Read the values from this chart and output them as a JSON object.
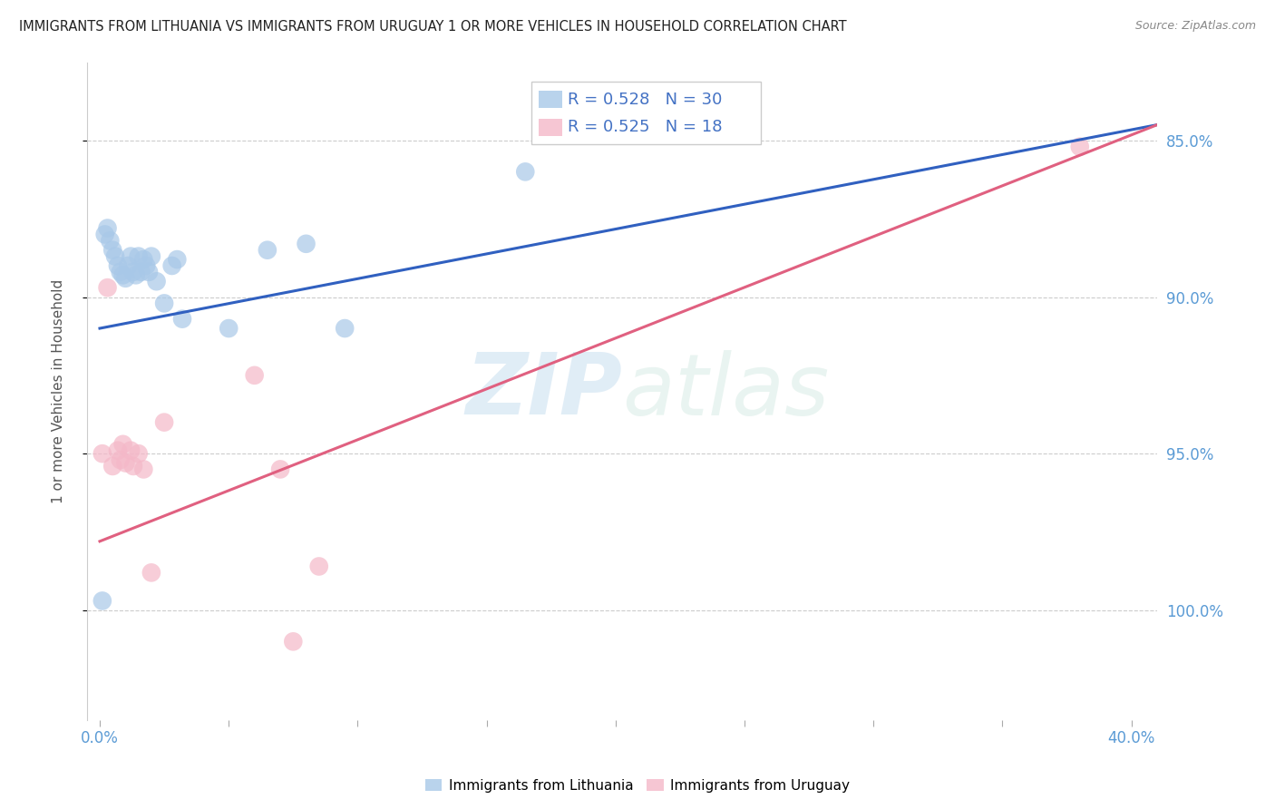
{
  "title": "IMMIGRANTS FROM LITHUANIA VS IMMIGRANTS FROM URUGUAY 1 OR MORE VEHICLES IN HOUSEHOLD CORRELATION CHART",
  "source": "Source: ZipAtlas.com",
  "ylabel": "1 or more Vehicles in Household",
  "legend_blue_r": "R = 0.528",
  "legend_blue_n": "N = 30",
  "legend_pink_r": "R = 0.525",
  "legend_pink_n": "N = 18",
  "legend_label_blue": "Immigrants from Lithuania",
  "legend_label_pink": "Immigrants from Uruguay",
  "watermark_zip": "ZIP",
  "watermark_atlas": "atlas",
  "blue_color": "#a8c8e8",
  "pink_color": "#f4b8c8",
  "trend_blue": "#3060c0",
  "trend_pink": "#e06080",
  "blue_scatter_x": [
    0.001,
    0.002,
    0.003,
    0.004,
    0.005,
    0.006,
    0.007,
    0.008,
    0.009,
    0.01,
    0.011,
    0.012,
    0.013,
    0.014,
    0.015,
    0.016,
    0.017,
    0.018,
    0.019,
    0.02,
    0.022,
    0.025,
    0.028,
    0.03,
    0.032,
    0.05,
    0.065,
    0.08,
    0.095,
    0.165
  ],
  "blue_scatter_y": [
    0.853,
    0.97,
    0.972,
    0.968,
    0.965,
    0.963,
    0.96,
    0.958,
    0.957,
    0.956,
    0.96,
    0.963,
    0.958,
    0.957,
    0.963,
    0.958,
    0.962,
    0.96,
    0.958,
    0.963,
    0.955,
    0.948,
    0.96,
    0.962,
    0.943,
    0.94,
    0.965,
    0.967,
    0.94,
    0.99
  ],
  "pink_scatter_x": [
    0.001,
    0.003,
    0.005,
    0.007,
    0.008,
    0.009,
    0.01,
    0.012,
    0.013,
    0.015,
    0.017,
    0.02,
    0.025,
    0.06,
    0.07,
    0.075,
    0.085,
    0.38
  ],
  "pink_scatter_y": [
    0.9,
    0.953,
    0.896,
    0.901,
    0.898,
    0.903,
    0.897,
    0.901,
    0.896,
    0.9,
    0.895,
    0.862,
    0.91,
    0.925,
    0.895,
    0.84,
    0.864,
    0.998
  ],
  "xlim": [
    -0.005,
    0.41
  ],
  "ylim": [
    0.815,
    1.025
  ],
  "yticks": [
    0.85,
    0.9,
    0.95,
    1.0
  ],
  "blue_trend_x0": 0.0,
  "blue_trend_y0": 0.94,
  "blue_trend_x1": 0.41,
  "blue_trend_y1": 1.005,
  "pink_trend_x0": 0.0,
  "pink_trend_y0": 0.872,
  "pink_trend_x1": 0.41,
  "pink_trend_y1": 1.005
}
